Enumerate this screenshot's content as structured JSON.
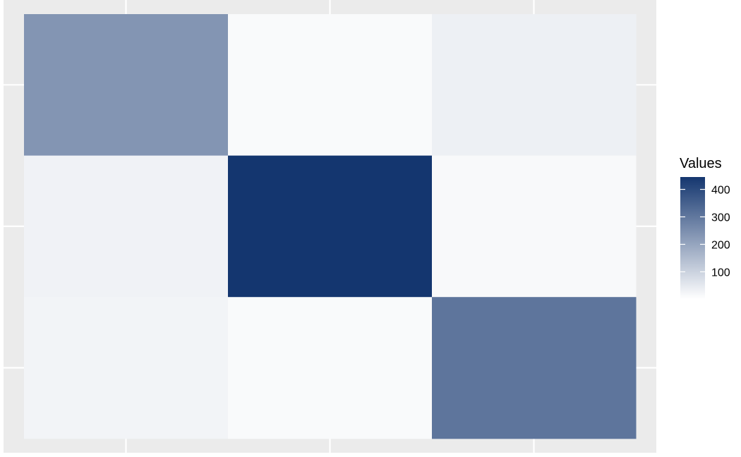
{
  "chart_data": {
    "type": "heatmap",
    "title": "",
    "xlabel": "",
    "ylabel": "",
    "rows": 3,
    "cols": 3,
    "values": [
      [
        235,
        12,
        35
      ],
      [
        30,
        445,
        15
      ],
      [
        25,
        12,
        305
      ]
    ],
    "legend": {
      "title": "Values",
      "position": "right",
      "range": [
        1,
        445
      ],
      "ticks": [
        100,
        200,
        300,
        400
      ]
    },
    "colors": {
      "low": "#ffffff",
      "high": "#14366f",
      "panel_bg": "#ebebeb",
      "grid": "#ffffff"
    }
  }
}
